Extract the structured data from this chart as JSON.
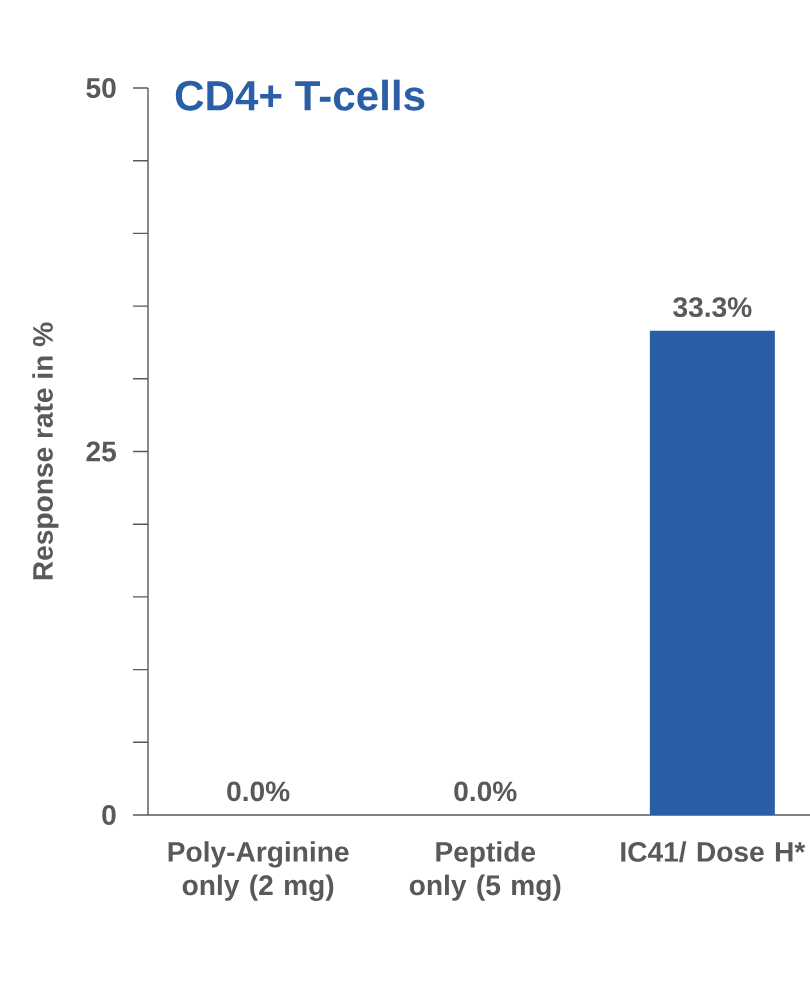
{
  "chart_data": {
    "type": "bar",
    "title": "CD4+ T-cells",
    "ylabel": "Response rate in %",
    "categories": [
      "Poly-Arginine only (2 mg)",
      "Peptide only (5 mg)",
      "IC41/ Dose H*"
    ],
    "values": [
      0,
      0,
      33.3
    ],
    "color": "#2a5fa8",
    "value_labels": [
      "0.0%",
      "0.0%",
      "33.3%"
    ],
    "ylim": [
      0,
      50
    ],
    "yticks": [
      0,
      {
        "value": 5,
        "label": null
      },
      {
        "value": 10,
        "label": null
      },
      {
        "value": 15,
        "label": null
      },
      {
        "value": 20,
        "label": null
      },
      25,
      {
        "value": 30,
        "label": null
      },
      {
        "value": 35,
        "label": null
      },
      {
        "value": 40,
        "label": null
      },
      {
        "value": 45,
        "label": null
      },
      50
    ],
    "grid": false
  }
}
